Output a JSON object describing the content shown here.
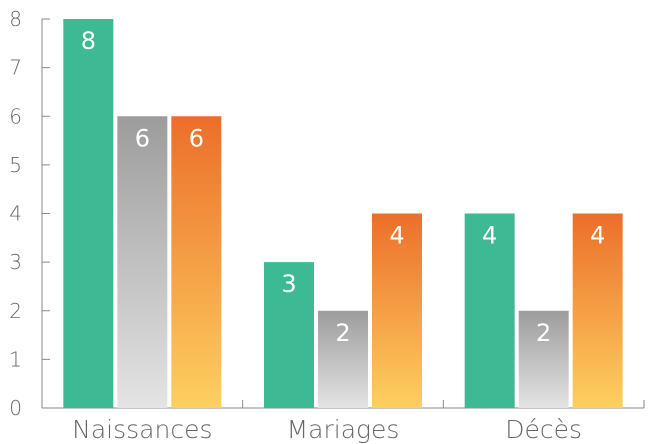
{
  "chart_data": {
    "type": "bar",
    "categories": [
      "Naissances",
      "Mariages",
      "Décès"
    ],
    "series": [
      {
        "values": [
          8,
          3,
          4
        ],
        "color": "#3dba93"
      },
      {
        "values": [
          6,
          2,
          2
        ],
        "color_top": "#9c9c9c",
        "color_bottom": "#e4e4e4"
      },
      {
        "values": [
          6,
          4,
          4
        ],
        "color_top": "#ec6e2a",
        "color_bottom": "#fdd060"
      }
    ],
    "ylim": [
      0,
      8
    ],
    "yticks": [
      "0",
      "1",
      "2",
      "3",
      "4",
      "5",
      "6",
      "7",
      "8"
    ],
    "value_labels": true,
    "grid": false,
    "legend": "none"
  }
}
